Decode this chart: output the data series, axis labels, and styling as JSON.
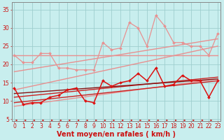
{
  "background_color": "#c8eeee",
  "grid_color": "#aadddd",
  "xlabel": "Vent moyen/en rafales ( km/h )",
  "x_ticks": [
    0,
    1,
    2,
    3,
    4,
    5,
    6,
    7,
    8,
    9,
    10,
    11,
    12,
    13,
    14,
    15,
    16,
    17,
    18,
    19,
    20,
    21,
    22,
    23
  ],
  "ylim": [
    4.5,
    37
  ],
  "xlim": [
    -0.3,
    23.3
  ],
  "y_ticks": [
    5,
    10,
    15,
    20,
    25,
    30,
    35
  ],
  "lines": [
    {
      "x": [
        0,
        23
      ],
      "y": [
        22.5,
        22.5
      ],
      "color": "#e89090",
      "linewidth": 1.0,
      "marker": null,
      "zorder": 2
    },
    {
      "x": [
        0,
        23
      ],
      "y": [
        18.0,
        27.0
      ],
      "color": "#e89090",
      "linewidth": 1.0,
      "marker": null,
      "zorder": 2
    },
    {
      "x": [
        0,
        23
      ],
      "y": [
        13.0,
        25.0
      ],
      "color": "#e89090",
      "linewidth": 1.0,
      "marker": null,
      "zorder": 2
    },
    {
      "x": [
        0,
        23
      ],
      "y": [
        8.5,
        16.0
      ],
      "color": "#e89090",
      "linewidth": 1.0,
      "marker": null,
      "zorder": 2
    },
    {
      "x": [
        0,
        1,
        2,
        3,
        4,
        5,
        6,
        7,
        8,
        9,
        10,
        11,
        12,
        13,
        14,
        15,
        16,
        17,
        18,
        19,
        20,
        21,
        22,
        23
      ],
      "y": [
        22.5,
        20.5,
        20.5,
        23.0,
        23.0,
        19.0,
        19.0,
        18.5,
        18.5,
        18.5,
        26.0,
        24.0,
        24.5,
        31.5,
        30.0,
        25.0,
        33.5,
        30.5,
        26.0,
        26.0,
        25.0,
        25.0,
        22.5,
        28.5
      ],
      "color": "#e89090",
      "linewidth": 0.9,
      "marker": "D",
      "markersize": 2.0,
      "zorder": 3
    },
    {
      "x": [
        0,
        23
      ],
      "y": [
        9.5,
        15.5
      ],
      "color": "#cc2222",
      "linewidth": 1.0,
      "marker": null,
      "zorder": 3
    },
    {
      "x": [
        0,
        23
      ],
      "y": [
        11.0,
        16.5
      ],
      "color": "#cc2222",
      "linewidth": 1.0,
      "marker": null,
      "zorder": 3
    },
    {
      "x": [
        0,
        23
      ],
      "y": [
        12.0,
        16.0
      ],
      "color": "#881111",
      "linewidth": 1.0,
      "marker": null,
      "zorder": 3
    },
    {
      "x": [
        0,
        1,
        2,
        3,
        4,
        5,
        6,
        7,
        8,
        9,
        10,
        11,
        12,
        13,
        14,
        15,
        16,
        17,
        18,
        19,
        20,
        21,
        22,
        23
      ],
      "y": [
        13.5,
        9.0,
        9.5,
        9.5,
        11.0,
        11.5,
        13.0,
        13.5,
        10.0,
        9.5,
        15.5,
        14.0,
        15.0,
        15.5,
        17.5,
        15.5,
        19.0,
        14.0,
        14.5,
        17.0,
        15.5,
        15.5,
        11.0,
        15.5
      ],
      "color": "#dd1111",
      "linewidth": 1.1,
      "marker": "D",
      "markersize": 2.0,
      "zorder": 5
    }
  ],
  "arrow_color": "#cc1111",
  "axis_fontsize": 6.5,
  "tick_fontsize": 5.5,
  "xlabel_fontsize": 7.0
}
